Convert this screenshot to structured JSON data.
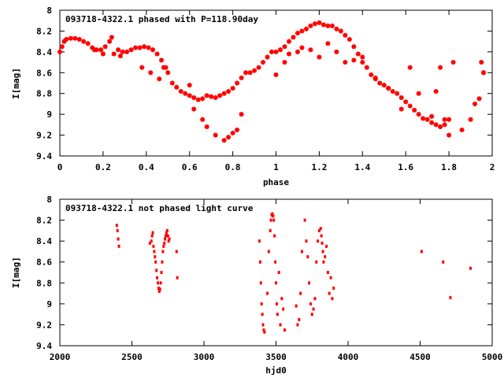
{
  "chart_data": [
    {
      "type": "scatter",
      "title": "093718-4322.1 phased with P=118.90day",
      "xlabel": "phase",
      "ylabel": "I[mag]",
      "xlim": [
        0,
        2
      ],
      "ylim": [
        9.4,
        8.0
      ],
      "y_inverted": true,
      "grid": false,
      "x_ticks": [
        "0",
        "0.2",
        "0.4",
        "0.6",
        "0.8",
        "1",
        "1.2",
        "1.4",
        "1.6",
        "1.8",
        "2"
      ],
      "y_ticks": [
        "8",
        "8.2",
        "8.4",
        "8.6",
        "8.8",
        "9",
        "9.2",
        "9.4"
      ],
      "marker_color": "#ff0000",
      "series": [
        {
          "x": [
            0.0,
            0.01,
            0.02,
            0.03,
            0.05,
            0.07,
            0.09,
            0.11,
            0.13,
            0.15,
            0.17,
            0.19,
            0.21,
            0.23,
            0.25,
            0.27,
            0.29,
            0.31,
            0.33,
            0.35,
            0.37,
            0.39,
            0.41,
            0.43,
            0.45,
            0.47,
            0.49,
            0.5,
            0.52,
            0.54,
            0.56,
            0.58,
            0.6,
            0.62,
            0.64,
            0.66,
            0.68,
            0.7,
            0.72,
            0.74,
            0.76,
            0.78,
            0.8,
            0.82,
            0.84,
            0.86,
            0.88,
            0.9,
            0.92,
            0.94,
            0.96,
            0.98,
            1.0,
            1.02,
            1.04,
            1.06,
            1.08,
            1.1,
            1.12,
            1.14,
            1.16,
            1.18,
            1.2,
            1.22,
            1.24,
            1.26,
            1.28,
            1.3,
            1.32,
            1.34,
            1.36,
            1.38,
            1.4,
            1.42,
            1.44,
            1.46,
            1.48,
            1.5,
            1.52,
            1.54,
            1.56,
            1.58,
            1.6,
            1.62,
            1.64,
            1.66,
            1.68,
            1.7,
            1.72,
            1.74,
            1.76,
            1.78,
            1.8,
            1.82,
            1.86,
            1.9,
            1.92,
            1.94,
            1.95,
            1.96,
            0.16,
            0.2,
            0.24,
            0.28,
            0.38,
            0.42,
            0.46,
            0.48,
            0.6,
            0.62,
            0.66,
            0.68,
            0.72,
            0.76,
            0.78,
            0.8,
            0.82,
            0.84,
            1.0,
            1.04,
            1.06,
            1.1,
            1.12,
            1.16,
            1.2,
            1.24,
            1.28,
            1.32,
            1.36,
            1.4,
            1.46,
            1.52,
            1.58,
            1.62,
            1.66,
            1.72,
            1.74,
            1.76,
            1.78,
            1.8,
            1.96
          ],
          "y": [
            8.4,
            8.35,
            8.3,
            8.28,
            8.27,
            8.27,
            8.28,
            8.3,
            8.32,
            8.36,
            8.38,
            8.38,
            8.35,
            8.3,
            8.42,
            8.38,
            8.4,
            8.4,
            8.38,
            8.36,
            8.36,
            8.35,
            8.36,
            8.38,
            8.42,
            8.48,
            8.55,
            8.6,
            8.7,
            8.74,
            8.78,
            8.8,
            8.82,
            8.84,
            8.86,
            8.85,
            8.82,
            8.83,
            8.84,
            8.82,
            8.8,
            8.78,
            8.75,
            8.7,
            8.65,
            8.6,
            8.6,
            8.58,
            8.55,
            8.5,
            8.45,
            8.4,
            8.4,
            8.38,
            8.35,
            8.3,
            8.26,
            8.22,
            8.2,
            8.18,
            8.15,
            8.13,
            8.12,
            8.14,
            8.15,
            8.15,
            8.18,
            8.2,
            8.24,
            8.28,
            8.35,
            8.42,
            8.5,
            8.55,
            8.62,
            8.66,
            8.7,
            8.72,
            8.75,
            8.78,
            8.8,
            8.84,
            8.88,
            8.92,
            8.96,
            9.0,
            9.04,
            9.05,
            9.08,
            9.1,
            9.12,
            9.1,
            9.05,
            8.5,
            9.15,
            9.05,
            8.9,
            8.85,
            8.5,
            8.6,
            8.38,
            8.42,
            8.26,
            8.44,
            8.55,
            8.6,
            8.66,
            8.55,
            8.72,
            8.95,
            9.05,
            9.12,
            9.2,
            9.25,
            9.22,
            9.18,
            9.15,
            9.0,
            8.62,
            8.5,
            8.42,
            8.4,
            8.36,
            8.38,
            8.45,
            8.32,
            8.4,
            8.5,
            8.48,
            8.45,
            8.65,
            8.75,
            8.95,
            8.55,
            8.8,
            9.02,
            8.78,
            8.55,
            9.05,
            9.2,
            8.6
          ]
        }
      ]
    },
    {
      "type": "scatter",
      "title": "093718-4322.1 not phased light curve",
      "xlabel": "hjd0",
      "ylabel": "I[mag]",
      "xlim": [
        2000,
        5000
      ],
      "ylim": [
        9.4,
        8.0
      ],
      "y_inverted": true,
      "grid": false,
      "x_ticks": [
        "2000",
        "2500",
        "3000",
        "3500",
        "4000",
        "4500",
        "5000"
      ],
      "y_ticks": [
        "8",
        "8.2",
        "8.4",
        "8.6",
        "8.8",
        "9",
        "9.2",
        "9.4"
      ],
      "marker_color": "#ff0000",
      "series": [
        {
          "x": [
            2395,
            2400,
            2405,
            2410,
            2625,
            2635,
            2640,
            2645,
            2650,
            2655,
            2660,
            2665,
            2670,
            2675,
            2680,
            2685,
            2690,
            2695,
            2700,
            2705,
            2710,
            2715,
            2720,
            2725,
            2730,
            2735,
            2740,
            2745,
            2750,
            2755,
            2760,
            2810,
            2815,
            3385,
            3390,
            3395,
            3400,
            3405,
            3410,
            3415,
            3420,
            3440,
            3450,
            3460,
            3465,
            3470,
            3475,
            3480,
            3485,
            3490,
            3495,
            3500,
            3505,
            3510,
            3520,
            3530,
            3540,
            3550,
            3560,
            3640,
            3650,
            3660,
            3670,
            3680,
            3700,
            3710,
            3720,
            3730,
            3740,
            3750,
            3760,
            3770,
            3780,
            3790,
            3800,
            3810,
            3815,
            3820,
            3825,
            3830,
            3840,
            3850,
            3860,
            3870,
            3880,
            3890,
            3900,
            4510,
            4660,
            4710,
            4850
          ],
          "y": [
            8.25,
            8.3,
            8.38,
            8.45,
            8.42,
            8.4,
            8.35,
            8.32,
            8.45,
            8.5,
            8.55,
            8.6,
            8.68,
            8.75,
            8.8,
            8.85,
            8.88,
            8.86,
            8.8,
            8.7,
            8.6,
            8.5,
            8.45,
            8.42,
            8.38,
            8.35,
            8.32,
            8.3,
            8.35,
            8.4,
            8.38,
            8.5,
            8.75,
            8.4,
            8.6,
            8.8,
            9.0,
            9.1,
            9.2,
            9.25,
            9.27,
            8.9,
            8.5,
            8.3,
            8.2,
            8.15,
            8.14,
            8.16,
            8.2,
            8.35,
            8.6,
            8.8,
            9.0,
            9.1,
            8.7,
            9.2,
            8.95,
            9.05,
            9.25,
            9.02,
            9.2,
            9.15,
            8.9,
            8.5,
            8.2,
            8.4,
            8.55,
            8.8,
            9.0,
            9.1,
            9.05,
            8.95,
            8.6,
            8.4,
            8.3,
            8.28,
            8.35,
            8.42,
            8.5,
            8.6,
            8.55,
            8.45,
            8.7,
            8.9,
            8.75,
            8.95,
            8.85,
            8.5,
            8.6,
            8.94,
            8.66
          ]
        }
      ]
    }
  ]
}
